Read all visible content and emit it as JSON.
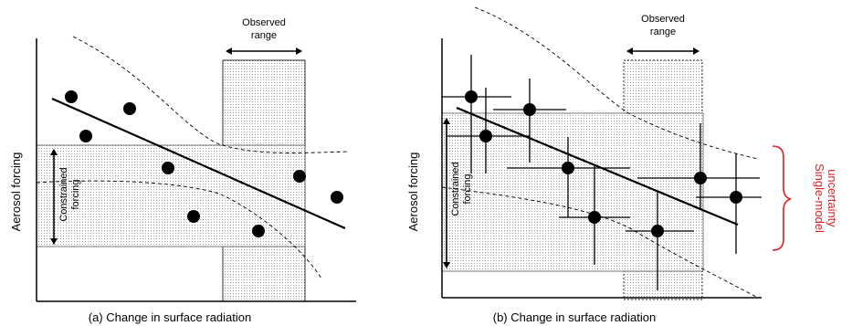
{
  "colors": {
    "ink": "#000000",
    "uncertainty": "#e02020",
    "stipple": "#9a9a9a"
  },
  "panel_a": {
    "caption": "(a) Change in surface radiation",
    "ylabel": "Aerosol forcing",
    "observed_range_line1": "Observed",
    "observed_range_line2": "range",
    "constrained_line1": "Constrained",
    "constrained_line2": "forcing",
    "points": [
      [
        0.1,
        0.85
      ],
      [
        0.2,
        0.78
      ],
      [
        0.26,
        0.6
      ],
      [
        0.5,
        0.43
      ],
      [
        0.6,
        0.3
      ],
      [
        0.82,
        0.35
      ],
      [
        0.9,
        0.25
      ],
      [
        0.97,
        0.2
      ]
    ]
  },
  "panel_b": {
    "caption": "(b) Change in surface radiation",
    "ylabel": "Aerosol forcing",
    "observed_range_line1": "Observed",
    "observed_range_line2": "range",
    "constrained_line1": "Constrained",
    "constrained_line2": "forcing",
    "uncertainty_line1": "Single-model",
    "uncertainty_line2": "uncertainty"
  }
}
